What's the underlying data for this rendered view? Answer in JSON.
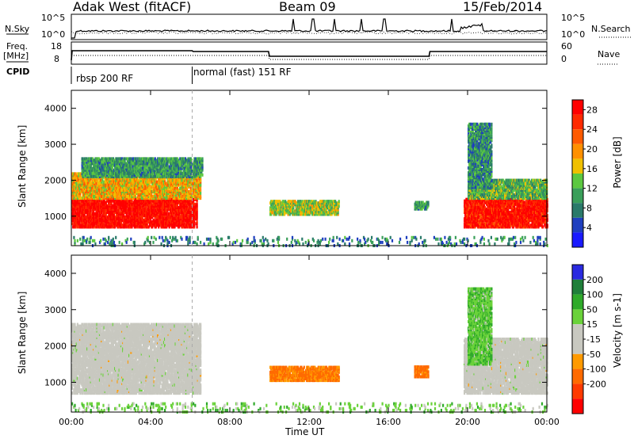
{
  "header": {
    "title": "Adak West (fitACF)",
    "beam": "Beam 09",
    "date": "15/Feb/2014"
  },
  "summary": {
    "nsky_label": "N.Sky",
    "nsky_ticks": [
      "10^5",
      "10^0"
    ],
    "nsearch_label": "N.Search",
    "freq_label": "Freq.",
    "freq_unit": "[MHz]",
    "freq_ticks": [
      "18",
      "8"
    ],
    "nave_label": "Nave",
    "nave_ticks": [
      "60",
      "0"
    ],
    "cpid_label": "CPID",
    "cpid_segments": [
      "rbsp 200 RF",
      "normal (fast) 151 RF"
    ]
  },
  "colors": {
    "power_scale": [
      "#1a1aff",
      "#1f3fbf",
      "#2a7a6a",
      "#3a9f5a",
      "#5cc840",
      "#f0c000",
      "#ff9000",
      "#ff5a00",
      "#ff2a00",
      "#ff0000"
    ],
    "velocity_scale": [
      "#2a2ae0",
      "#1f7f3a",
      "#2faa2a",
      "#6ad23a",
      "#c8c8c0",
      "#c8c8c0",
      "#ff9a00",
      "#ff6a00",
      "#ff3a00",
      "#ff0000"
    ],
    "ground_scatter": "#c8c8c0"
  },
  "chart_data": [
    {
      "type": "heatmap",
      "title": "Power",
      "ylabel": "Slant Range [km]",
      "xlabel": "",
      "x_ticks": [
        "00:00",
        "04:00",
        "08:00",
        "12:00",
        "16:00",
        "20:00",
        "00:00"
      ],
      "y_ticks": [
        1000,
        2000,
        3000,
        4000
      ],
      "ylim": [
        180,
        4500
      ],
      "xlim": [
        0,
        24
      ],
      "colorbar_label": "Power [dB]",
      "colorbar_ticks": [
        4,
        8,
        12,
        16,
        20,
        24,
        28
      ],
      "colorbar_range": [
        0,
        30
      ],
      "scatter_regions": [
        {
          "t": [
            0.0,
            6.3
          ],
          "r": [
            700,
            1500
          ],
          "level": 29
        },
        {
          "t": [
            0.0,
            6.5
          ],
          "r": [
            1500,
            2200
          ],
          "level": 18
        },
        {
          "t": [
            0.5,
            6.6
          ],
          "r": [
            2100,
            2600
          ],
          "level": 10
        },
        {
          "t": [
            10.0,
            13.5
          ],
          "r": [
            1050,
            1450
          ],
          "level": 14
        },
        {
          "t": [
            17.3,
            18.0
          ],
          "r": [
            1200,
            1400
          ],
          "level": 10
        },
        {
          "t": [
            19.8,
            24.0
          ],
          "r": [
            700,
            1500
          ],
          "level": 28
        },
        {
          "t": [
            20.0,
            24.0
          ],
          "r": [
            1500,
            2000
          ],
          "level": 12
        },
        {
          "t": [
            20.0,
            21.2
          ],
          "r": [
            1800,
            3600
          ],
          "level": 9
        },
        {
          "t": [
            0.0,
            24.0
          ],
          "r": [
            180,
            450
          ],
          "level": 8
        }
      ]
    },
    {
      "type": "heatmap",
      "title": "Velocity",
      "ylabel": "Slant Range [km]",
      "xlabel": "Time UT",
      "x_ticks": [
        "00:00",
        "04:00",
        "08:00",
        "12:00",
        "16:00",
        "20:00",
        "00:00"
      ],
      "y_ticks": [
        1000,
        2000,
        3000,
        4000
      ],
      "ylim": [
        180,
        4500
      ],
      "xlim": [
        0,
        24
      ],
      "colorbar_label": "Velocity [m s-1]",
      "colorbar_ticks": [
        200,
        100,
        50,
        15,
        -15,
        -50,
        -100,
        -200
      ],
      "colorbar_range": [
        -250,
        250
      ],
      "scatter_regions": [
        {
          "t": [
            0.0,
            6.5
          ],
          "r": [
            700,
            2600
          ],
          "velocity": 0,
          "ground": true
        },
        {
          "t": [
            10.0,
            13.5
          ],
          "r": [
            1050,
            1450
          ],
          "velocity": -60
        },
        {
          "t": [
            17.3,
            18.0
          ],
          "r": [
            1150,
            1450
          ],
          "velocity": -70
        },
        {
          "t": [
            19.8,
            24.0
          ],
          "r": [
            700,
            2200
          ],
          "velocity": 0,
          "ground": true
        },
        {
          "t": [
            20.0,
            21.2
          ],
          "r": [
            1500,
            3600
          ],
          "velocity": 40
        },
        {
          "t": [
            0.0,
            24.0
          ],
          "r": [
            180,
            450
          ],
          "velocity": 30
        }
      ]
    }
  ]
}
